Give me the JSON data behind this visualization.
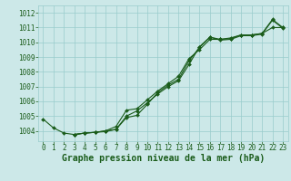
{
  "xlabel": "Graphe pression niveau de la mer (hPa)",
  "xlim": [
    -0.5,
    23.5
  ],
  "ylim": [
    1003.3,
    1012.5
  ],
  "yticks": [
    1004,
    1005,
    1006,
    1007,
    1008,
    1009,
    1010,
    1011,
    1012
  ],
  "xticks": [
    0,
    1,
    2,
    3,
    4,
    5,
    6,
    7,
    8,
    9,
    10,
    11,
    12,
    13,
    14,
    15,
    16,
    17,
    18,
    19,
    20,
    21,
    22,
    23
  ],
  "bg_color": "#cce8e8",
  "grid_color": "#99cccc",
  "line_color": "#1a5c1a",
  "line1": [
    1004.8,
    1004.2,
    1003.85,
    1003.75,
    1003.85,
    1003.9,
    1004.0,
    1004.1,
    1004.9,
    1005.05,
    1005.8,
    1006.6,
    1007.1,
    1007.5,
    1008.75,
    1009.65,
    1010.35,
    1010.2,
    1010.25,
    1010.5,
    1010.5,
    1010.6,
    1011.55,
    1011.0
  ],
  "line2": [
    null,
    null,
    null,
    1003.75,
    1003.85,
    1003.9,
    1004.0,
    1004.3,
    1005.4,
    1005.5,
    1006.1,
    1006.7,
    1007.2,
    1007.7,
    1008.9,
    1009.5,
    1010.2,
    1010.2,
    1010.3,
    1010.5,
    1010.5,
    1010.6,
    1011.0,
    1011.0
  ],
  "line3": [
    null,
    null,
    null,
    1003.75,
    1003.85,
    1003.9,
    1003.95,
    1004.1,
    1005.0,
    1005.35,
    1005.9,
    1006.5,
    1007.0,
    1007.4,
    1008.5,
    1009.7,
    1010.35,
    1010.15,
    1010.2,
    1010.45,
    1010.45,
    1010.55,
    1011.5,
    1010.95
  ],
  "tick_fontsize": 5.5,
  "xlabel_fontsize": 7.0
}
